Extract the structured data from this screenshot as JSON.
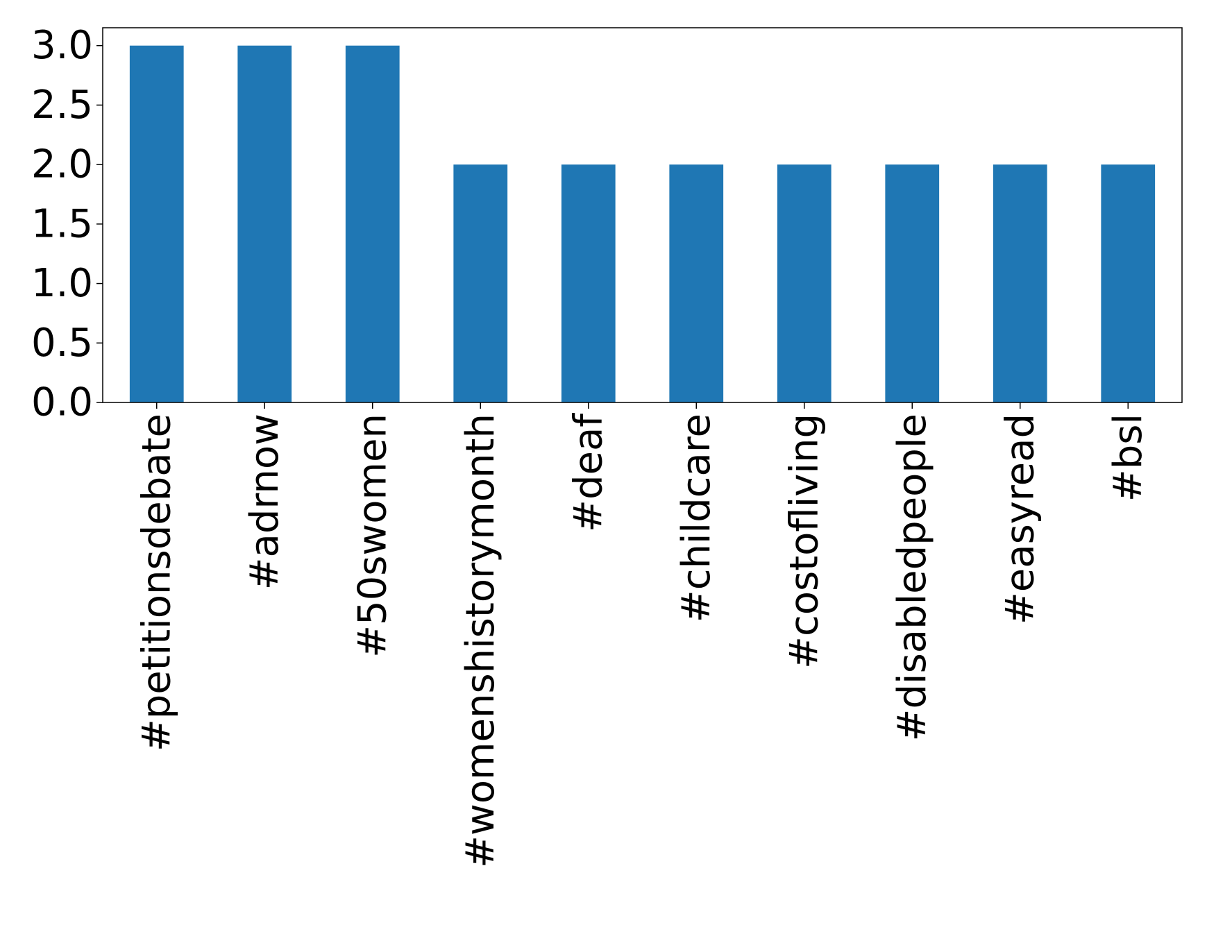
{
  "chart_data": {
    "type": "bar",
    "title": "",
    "xlabel": "",
    "ylabel": "",
    "categories": [
      "#petitionsdebate",
      "#adrnow",
      "#50swomen",
      "#womenshistorymonth",
      "#deaf",
      "#childcare",
      "#costofliving",
      "#disabledpeople",
      "#easyread",
      "#bsl"
    ],
    "values": [
      3,
      3,
      3,
      2,
      2,
      2,
      2,
      2,
      2,
      2
    ],
    "ylim": [
      0,
      3.15
    ],
    "yticks": [
      "0.0",
      "0.5",
      "1.0",
      "1.5",
      "2.0",
      "2.5",
      "3.0"
    ],
    "bar_color": "#1f77b4",
    "grid": false,
    "legend": "none"
  }
}
